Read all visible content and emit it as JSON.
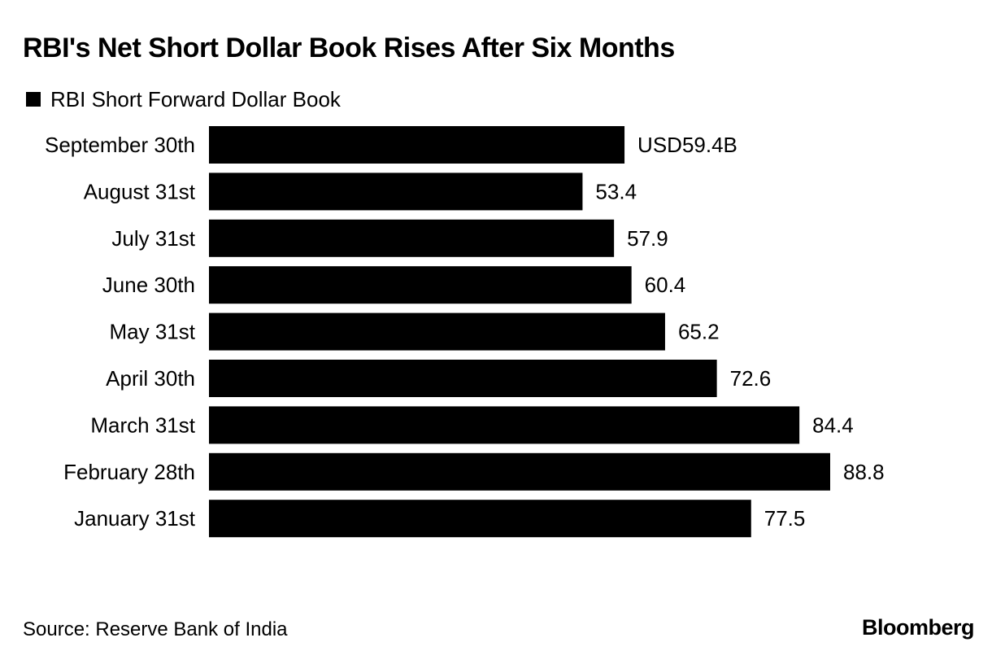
{
  "chart_data": {
    "type": "bar",
    "orientation": "horizontal",
    "title": "RBI's Net Short Dollar Book Rises After Six Months",
    "legend": [
      "RBI Short Forward Dollar Book"
    ],
    "categories": [
      "September 30th",
      "August 31st",
      "July 31st",
      "June 30th",
      "May 31st",
      "April 30th",
      "March 31st",
      "February 28th",
      "January 31st"
    ],
    "values": [
      59.4,
      53.4,
      57.9,
      60.4,
      65.2,
      72.6,
      84.4,
      88.8,
      77.5
    ],
    "value_labels": [
      "USD59.4B",
      "53.4",
      "57.9",
      "60.4",
      "65.2",
      "72.6",
      "84.4",
      "88.8",
      "77.5"
    ],
    "unit": "USD billions",
    "xlim": [
      0,
      88.8
    ],
    "bar_color": "#000000",
    "grid": false
  },
  "footer": {
    "source": "Source: Reserve Bank of India",
    "brand": "Bloomberg"
  }
}
